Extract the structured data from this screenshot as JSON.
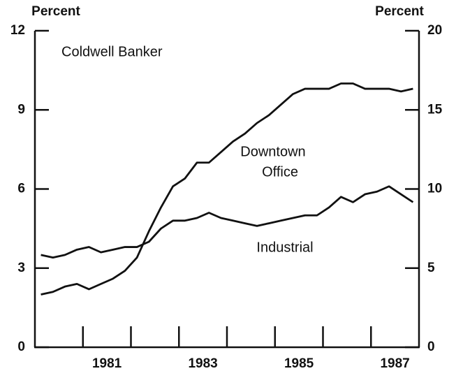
{
  "chart_data": {
    "type": "line",
    "y_label": "Percent",
    "y2_label": "Percent",
    "annotations": [
      "Coldwell Banker",
      "Downtown",
      "Office",
      "Industrial"
    ],
    "x": [
      1980.125,
      1980.375,
      1980.625,
      1980.875,
      1981.125,
      1981.375,
      1981.625,
      1981.875,
      1982.125,
      1982.375,
      1982.625,
      1982.875,
      1983.125,
      1983.375,
      1983.625,
      1983.875,
      1984.125,
      1984.375,
      1984.625,
      1984.875,
      1985.125,
      1985.375,
      1985.625,
      1985.875,
      1986.125,
      1986.375,
      1986.625,
      1986.875,
      1987.125,
      1987.375,
      1987.625,
      1987.875
    ],
    "series": [
      {
        "name": "Downtown Office",
        "color": "#111111",
        "values": [
          2.0,
          2.1,
          2.3,
          2.4,
          2.2,
          2.4,
          2.6,
          2.9,
          3.4,
          4.4,
          5.3,
          6.1,
          6.4,
          7.0,
          7.0,
          7.4,
          7.8,
          8.1,
          8.5,
          8.8,
          9.2,
          9.6,
          9.8,
          9.8,
          9.8,
          10.0,
          10.0,
          9.8,
          9.8,
          9.8,
          9.7,
          9.8
        ]
      },
      {
        "name": "Industrial",
        "color": "#111111",
        "values": [
          3.5,
          3.4,
          3.5,
          3.7,
          3.8,
          3.6,
          3.7,
          3.8,
          3.8,
          4.0,
          4.5,
          4.8,
          4.8,
          4.9,
          5.1,
          4.9,
          4.8,
          4.7,
          4.6,
          4.7,
          4.8,
          4.9,
          5.0,
          5.0,
          5.3,
          5.7,
          5.5,
          5.8,
          5.9,
          6.1,
          5.8,
          5.5
        ]
      }
    ],
    "xlim": [
      1980,
      1988
    ],
    "xticks": [
      {
        "value": 1981.5,
        "label": "1981"
      },
      {
        "value": 1983.5,
        "label": "1983"
      },
      {
        "value": 1985.5,
        "label": "1985"
      },
      {
        "value": 1987.5,
        "label": "1987"
      }
    ],
    "xminor": [
      1981,
      1982,
      1983,
      1984,
      1985,
      1986,
      1987
    ],
    "ylim": [
      0,
      12
    ],
    "yticks": [
      0,
      3,
      6,
      9,
      12
    ],
    "y2lim": [
      0,
      20
    ],
    "y2ticks": [
      0,
      5,
      10,
      15,
      20
    ]
  }
}
